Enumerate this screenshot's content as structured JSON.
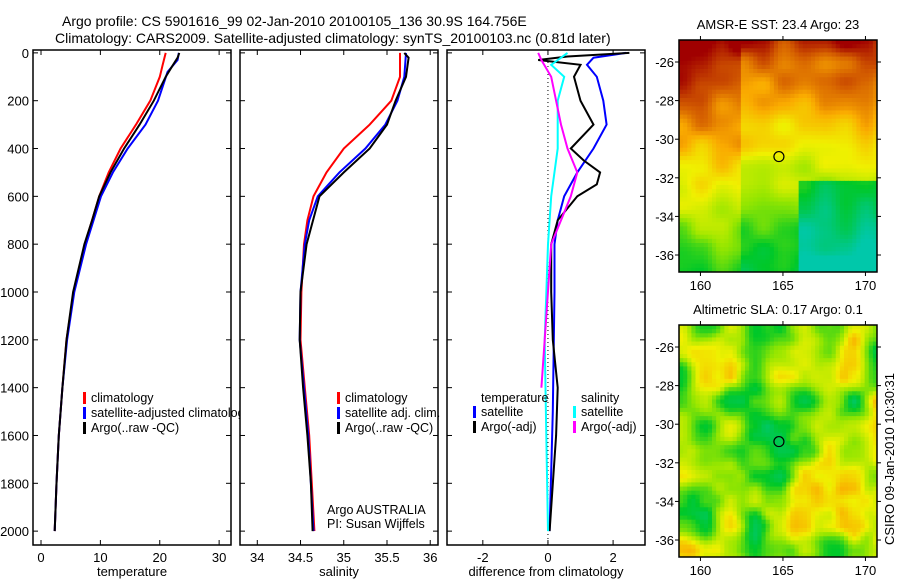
{
  "title_line1": "Argo profile: CS 5901616_99 02-Jan-2010 20100105_136 30.9S 164.756E",
  "title_line2": "Climatology: CARS2009. Satellite-adjusted climatology: synTS_20100103.nc (0.81d later)",
  "credit": "CSIRO 09-Jan-2010 10:30:31",
  "colors": {
    "climatology": "#ff0000",
    "satellite": "#0000ff",
    "argo": "#000000",
    "sal_satellite": "#00ffff",
    "sal_argo": "#ff00ff"
  },
  "chart_data": [
    {
      "type": "line",
      "id": "temperature",
      "xlabel": "temperature",
      "ylabel": "",
      "xlim": [
        -1.35,
        32
      ],
      "ylim": [
        2058,
        -12
      ],
      "xticks": [
        "0",
        "10",
        "20",
        "30"
      ],
      "xtick_values": [
        0,
        10,
        20,
        30
      ],
      "yticks": [
        "0",
        "200",
        "400",
        "600",
        "800",
        "1000",
        "1200",
        "1400",
        "1600",
        "1800",
        "2000"
      ],
      "ytick_values": [
        0,
        200,
        400,
        600,
        800,
        1000,
        1200,
        1400,
        1600,
        1800,
        2000
      ],
      "legend": [
        "climatology",
        "satellite-adjusted climatology",
        "Argo(..raw -QC)"
      ],
      "series": [
        {
          "name": "climatology",
          "color": "#ff0000",
          "depth": [
            0,
            50,
            100,
            200,
            300,
            400,
            500,
            600,
            800,
            1000,
            1200,
            1400,
            1600,
            1800,
            2000
          ],
          "values": [
            21,
            20.5,
            20,
            18.4,
            16,
            13.4,
            11.4,
            9.8,
            7.4,
            5.5,
            4.3,
            3.6,
            3.0,
            2.6,
            2.3
          ]
        },
        {
          "name": "satellite-adjusted climatology",
          "color": "#0000ff",
          "depth": [
            0,
            30,
            80,
            200,
            300,
            400,
            500,
            600,
            800,
            1000,
            1200,
            1400,
            1600,
            1800,
            2000
          ],
          "values": [
            23.2,
            23,
            21.3,
            19.7,
            17.6,
            14.6,
            12.1,
            10.1,
            7.6,
            5.6,
            4.4,
            3.6,
            3.0,
            2.6,
            2.3
          ]
        },
        {
          "name": "Argo(..raw -QC)",
          "color": "#000000",
          "depth": [
            0,
            20,
            60,
            100,
            200,
            300,
            400,
            500,
            600,
            700,
            800,
            1000,
            1200,
            1400,
            1600,
            1800,
            2000
          ],
          "values": [
            23.3,
            23,
            22,
            21,
            19,
            16.6,
            14,
            11.7,
            9.8,
            8.6,
            7.3,
            5.4,
            4.3,
            3.6,
            3.0,
            2.6,
            2.3
          ]
        }
      ]
    },
    {
      "type": "line",
      "id": "salinity",
      "xlabel": "salinity",
      "xlim": [
        33.8,
        36.09
      ],
      "ylim": [
        2058,
        -12
      ],
      "xticks": [
        "34",
        "34.5",
        "35",
        "35.5",
        "36"
      ],
      "xtick_values": [
        34,
        34.5,
        35,
        35.5,
        36
      ],
      "legend": [
        "climatology",
        "satellite adj. clim.",
        "Argo(..raw -QC)"
      ],
      "annotation": [
        "Argo AUSTRALIA",
        "PI: Susan Wijffels"
      ],
      "series": [
        {
          "name": "climatology",
          "color": "#ff0000",
          "depth": [
            0,
            100,
            200,
            300,
            400,
            500,
            600,
            700,
            800,
            1000,
            1200,
            1400,
            1600,
            1800,
            2000
          ],
          "values": [
            35.65,
            35.65,
            35.55,
            35.3,
            35.0,
            34.8,
            34.65,
            34.58,
            34.54,
            34.51,
            34.5,
            34.55,
            34.6,
            34.63,
            34.66
          ]
        },
        {
          "name": "satellite adj. clim.",
          "color": "#0000ff",
          "depth": [
            0,
            100,
            200,
            300,
            400,
            500,
            600,
            700,
            800,
            1000,
            1200,
            1400,
            1600,
            1800,
            2000
          ],
          "values": [
            35.72,
            35.7,
            35.62,
            35.48,
            35.25,
            34.95,
            34.7,
            34.6,
            34.55,
            34.5,
            34.49,
            34.54,
            34.59,
            34.62,
            34.65
          ]
        },
        {
          "name": "Argo(..raw -QC)",
          "color": "#000000",
          "depth": [
            0,
            20,
            100,
            200,
            300,
            400,
            500,
            600,
            800,
            1000,
            1200,
            1400,
            1600,
            1800,
            2000
          ],
          "values": [
            35.7,
            35.75,
            35.72,
            35.6,
            35.5,
            35.3,
            35.0,
            34.72,
            34.57,
            34.5,
            34.49,
            34.53,
            34.58,
            34.62,
            34.64
          ]
        }
      ]
    },
    {
      "type": "line",
      "id": "difference",
      "xlabel": "difference from climatology",
      "xlim": [
        -3.1,
        2.98
      ],
      "ylim": [
        2058,
        -12
      ],
      "xticks": [
        "-2",
        "0",
        "2"
      ],
      "xtick_values": [
        -2,
        0,
        2
      ],
      "legend_temperature": {
        "title": "temperature",
        "items": [
          "satellite",
          "Argo(-adj)"
        ]
      },
      "legend_salinity": {
        "title": "salinity",
        "items": [
          "satellite",
          "Argo(-adj)"
        ]
      },
      "series": [
        {
          "name": "temperature satellite",
          "color": "#0000ff",
          "depth": [
            0,
            20,
            50,
            100,
            200,
            300,
            400,
            500,
            600,
            700,
            800,
            1000,
            1500,
            2000
          ],
          "values": [
            2.4,
            1.4,
            1.2,
            1.5,
            1.7,
            1.8,
            1.4,
            0.9,
            0.5,
            0.3,
            0.2,
            0.2,
            0.15,
            0.05
          ]
        },
        {
          "name": "temperature Argo(-adj)",
          "color": "#000000",
          "depth": [
            0,
            15,
            30,
            50,
            100,
            200,
            300,
            400,
            450,
            500,
            550,
            600,
            700,
            800,
            1000,
            1200,
            1400,
            1600,
            2000
          ],
          "values": [
            2.5,
            0.6,
            -0.3,
            1.0,
            0.8,
            1.0,
            1.4,
            0.7,
            1.1,
            1.6,
            1.5,
            0.9,
            0.3,
            0.1,
            0.1,
            0.15,
            0.3,
            0.25,
            0.05
          ]
        },
        {
          "name": "salinity satellite",
          "color": "#00ffff",
          "depth": [
            0,
            50,
            100,
            200,
            400,
            600,
            800,
            1200,
            1600,
            2000
          ],
          "values": [
            0.6,
            0.1,
            0.5,
            0.3,
            0.3,
            0.1,
            0.0,
            -0.1,
            -0.05,
            0.0
          ]
        },
        {
          "name": "salinity Argo(-adj)",
          "color": "#ff00ff",
          "depth": [
            0,
            30,
            100,
            300,
            400,
            500,
            600,
            800,
            1200,
            1400
          ],
          "values": [
            -0.3,
            -0.2,
            0.1,
            0.4,
            0.6,
            0.9,
            0.7,
            0.1,
            -0.1,
            -0.2
          ]
        }
      ]
    },
    {
      "type": "heatmap",
      "id": "sst-map",
      "title": "AMSR-E SST: 23.4 Argo: 23",
      "xlim": [
        158.7,
        170.7
      ],
      "ylim": [
        -36.88,
        -24.86
      ],
      "xticks": [
        "160",
        "165",
        "170"
      ],
      "xtick_values": [
        160,
        165,
        170
      ],
      "yticks": [
        "-26",
        "-28",
        "-30",
        "-32",
        "-34",
        "-36"
      ],
      "ytick_values": [
        -26,
        -28,
        -30,
        -32,
        -34,
        -36
      ],
      "marker": {
        "lon": 164.756,
        "lat": -30.9
      }
    },
    {
      "type": "heatmap",
      "id": "sla-map",
      "title": "Altimetric SLA: 0.17 Argo: 0.1",
      "xlim": [
        158.7,
        170.7
      ],
      "ylim": [
        -36.88,
        -24.86
      ],
      "xticks": [
        "160",
        "165",
        "170"
      ],
      "xtick_values": [
        160,
        165,
        170
      ],
      "yticks": [
        "-26",
        "-28",
        "-30",
        "-32",
        "-34",
        "-36"
      ],
      "ytick_values": [
        -26,
        -28,
        -30,
        -32,
        -34,
        -36
      ],
      "marker": {
        "lon": 164.756,
        "lat": -30.9
      }
    }
  ]
}
